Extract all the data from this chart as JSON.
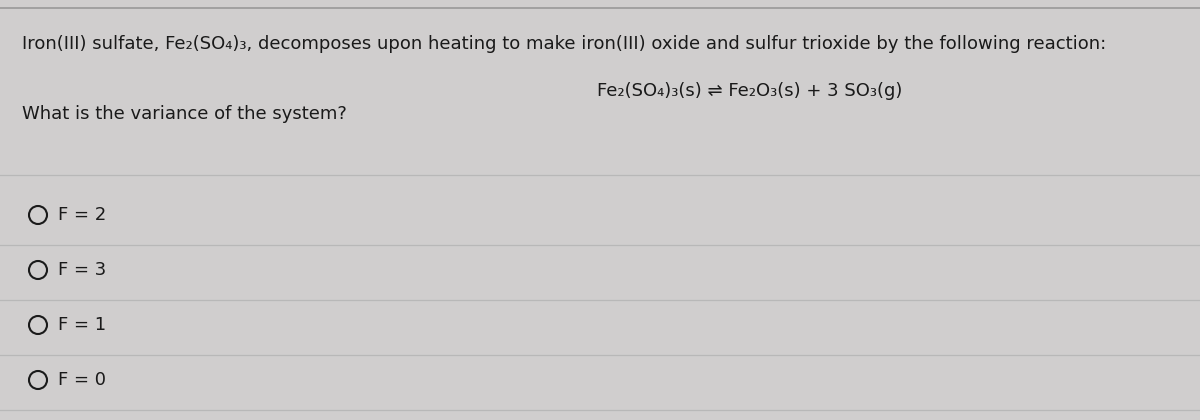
{
  "background_color": "#d0cece",
  "divider_color": "#b8b8b8",
  "text_color": "#1a1a1a",
  "header_line1": "Iron(III) sulfate, Fe₂(SO₄)₃, decomposes upon heating to make iron(III) oxide and sulfur trioxide by the following reaction:",
  "reaction_line": "Fe₂(SO₄)₃(s) ⇌ Fe₂O₃(s) + 3 SO₃(g)",
  "question_line": "What is the variance of the system?",
  "options": [
    "F = 2",
    "F = 3",
    "F = 1",
    "F = 0"
  ],
  "font_size_header": 13.0,
  "font_size_reaction": 13.0,
  "font_size_question": 13.0,
  "font_size_options": 13.0
}
